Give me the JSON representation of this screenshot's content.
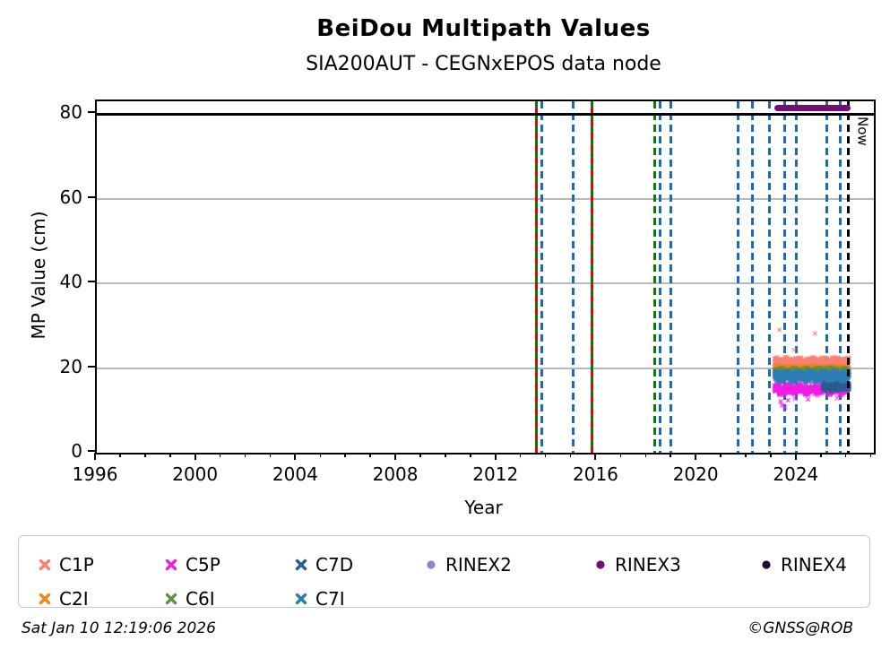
{
  "header": {
    "title": "BeiDou Multipath Values",
    "subtitle": "SIA200AUT - CEGNxEPOS data node"
  },
  "footer": {
    "timestamp": "Sat Jan 10 12:19:06 2026",
    "credit": "©GNSS@ROB"
  },
  "chart_data": {
    "type": "scatter",
    "title": "BeiDou Multipath Values",
    "subtitle": "SIA200AUT - CEGNxEPOS data node",
    "xlabel": "Year",
    "ylabel": "MP Value (cm)",
    "xlim": [
      1996,
      2027.05
    ],
    "ylim": [
      0,
      83
    ],
    "xticks_major": [
      1996,
      2000,
      2004,
      2008,
      2012,
      2016,
      2020,
      2024
    ],
    "x_minor_step": 1,
    "yticks": [
      0,
      20,
      40,
      60,
      80
    ],
    "grid_y": [
      20,
      40,
      60
    ],
    "grid_color": "#b9b9b9",
    "threshold_line": {
      "y": 80,
      "color": "#000000",
      "style": "solid"
    },
    "now_marker": {
      "x": 2026.03,
      "label": "Now",
      "color": "#000000",
      "style": "dashed"
    },
    "event_lines": [
      {
        "x": 2013.58,
        "style": "greenred"
      },
      {
        "x": 2013.79,
        "style": "blue"
      },
      {
        "x": 2015.05,
        "style": "blue"
      },
      {
        "x": 2015.8,
        "style": "greenred"
      },
      {
        "x": 2018.31,
        "style": "green"
      },
      {
        "x": 2018.52,
        "style": "blue"
      },
      {
        "x": 2018.95,
        "style": "blue"
      },
      {
        "x": 2021.64,
        "style": "blue"
      },
      {
        "x": 2022.21,
        "style": "blue"
      },
      {
        "x": 2022.89,
        "style": "blue"
      },
      {
        "x": 2023.5,
        "style": "blue"
      },
      {
        "x": 2023.96,
        "style": "blue"
      },
      {
        "x": 2025.18,
        "style": "blue"
      },
      {
        "x": 2025.72,
        "style": "blue"
      }
    ],
    "event_line_colors": {
      "blue": "#1a6ab8",
      "green": "#008000",
      "greenred": [
        "#008000",
        "#e8000d"
      ]
    },
    "series": [
      {
        "name": "C1P",
        "color": "#fa8072",
        "marker": "x",
        "x_range": [
          2023.08,
          2026.05
        ],
        "y_center": 21.4,
        "y_spread": 1.0,
        "n": 750,
        "outliers": [
          [
            2023.28,
            29.0
          ],
          [
            2024.7,
            28.2
          ],
          [
            2023.86,
            24.3
          ]
        ]
      },
      {
        "name": "C2I",
        "color": "#f78613",
        "marker": "x",
        "x_range": [
          2023.08,
          2026.05
        ],
        "y_center": 19.95,
        "y_spread": 0.5,
        "n": 420,
        "outliers": []
      },
      {
        "name": "C5P",
        "color": "#f01ee4",
        "marker": "x",
        "x_range": [
          2023.08,
          2026.0
        ],
        "y_center": 15.0,
        "y_spread": 1.1,
        "n": 750,
        "outliers": [
          [
            2023.33,
            12.1
          ],
          [
            2023.38,
            11.2
          ],
          [
            2023.5,
            10.7
          ],
          [
            2023.62,
            12.4
          ],
          [
            2023.9,
            12.7
          ],
          [
            2024.42,
            12.6
          ],
          [
            2025.58,
            12.9
          ]
        ]
      },
      {
        "name": "C6I",
        "color": "#5f9140",
        "marker": "x",
        "x_range": [
          2023.08,
          2026.05
        ],
        "y_center": 19.25,
        "y_spread": 0.75,
        "n": 420,
        "outliers": []
      },
      {
        "name": "C7D",
        "color": "#2a5d8f",
        "marker": "x",
        "x_range": [
          2025.02,
          2026.06
        ],
        "y_center": 15.7,
        "y_spread": 0.95,
        "n": 430,
        "outliers": []
      },
      {
        "name": "C7I",
        "color": "#2e7db6",
        "marker": "x",
        "x_range": [
          2023.08,
          2026.05
        ],
        "y_center": 18.05,
        "y_spread": 1.05,
        "n": 1150,
        "outliers": []
      },
      {
        "name": "RINEX2",
        "color": "#8b87c7",
        "marker": "dot",
        "n": 0,
        "outliers": []
      },
      {
        "name": "RINEX3",
        "color": "#730f74",
        "marker": "dot",
        "n": 0,
        "outliers": [],
        "line": {
          "x_range": [
            2023.08,
            2026.12
          ],
          "y": 81.4
        }
      },
      {
        "name": "RINEX4",
        "color": "#240a2e",
        "marker": "dot",
        "n": 0,
        "outliers": []
      }
    ],
    "legend_rows": [
      [
        "C1P",
        "C5P",
        "C7D",
        "RINEX2",
        "RINEX3",
        "RINEX4"
      ],
      [
        "C2I",
        "C6I",
        "C7I"
      ]
    ],
    "legend_position": "bottom"
  }
}
